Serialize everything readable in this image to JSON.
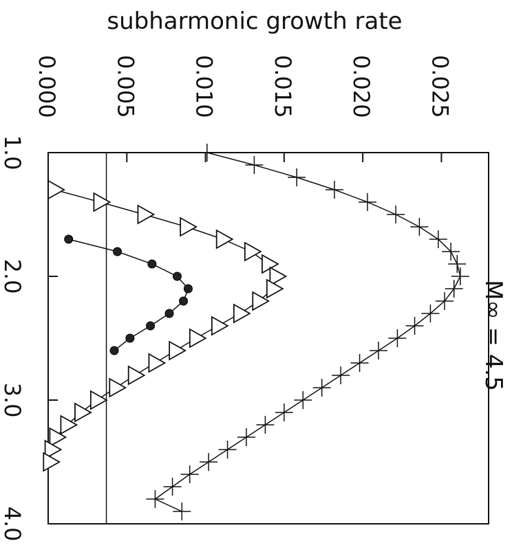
{
  "chart_data": {
    "type": "line",
    "orientation": "rotated-90-clockwise",
    "title": "M∞ = 4.5",
    "xlabel": "",
    "ylabel": "subharmonic growth rate",
    "xlim": [
      1.0,
      4.0
    ],
    "ylim": [
      0.0,
      0.028
    ],
    "x_ticks": [
      "1.0",
      "2.0",
      "3.0",
      "4.0"
    ],
    "y_ticks": [
      "0.000",
      "0.005",
      "0.010",
      "0.015",
      "0.020",
      "0.025"
    ],
    "reference_line_y": 0.0037,
    "series": [
      {
        "marker": "plus",
        "x": [
          1.0,
          1.1,
          1.2,
          1.3,
          1.4,
          1.5,
          1.6,
          1.7,
          1.8,
          1.9,
          2.0,
          2.1,
          2.2,
          2.3,
          2.4,
          2.5,
          2.6,
          2.7,
          2.8,
          2.9,
          3.0,
          3.1,
          3.2,
          3.3,
          3.4,
          3.5,
          3.6,
          3.7,
          3.8,
          3.9
        ],
        "y": [
          0.0101,
          0.0131,
          0.0158,
          0.0182,
          0.0203,
          0.0221,
          0.0236,
          0.0248,
          0.0256,
          0.026,
          0.0262,
          0.0258,
          0.0252,
          0.0243,
          0.0233,
          0.0222,
          0.021,
          0.0198,
          0.0186,
          0.0174,
          0.0162,
          0.015,
          0.0138,
          0.0126,
          0.0114,
          0.0102,
          0.009,
          0.0079,
          0.0068,
          0.0085
        ]
      },
      {
        "marker": "triangle",
        "x": [
          1.3,
          1.4,
          1.5,
          1.6,
          1.7,
          1.8,
          1.9,
          2.0,
          2.1,
          2.2,
          2.3,
          2.4,
          2.5,
          2.6,
          2.7,
          2.8,
          2.9,
          3.0,
          3.1,
          3.2,
          3.3,
          3.4,
          3.5
        ],
        "y": [
          0.0004,
          0.0033,
          0.0061,
          0.0088,
          0.0111,
          0.0129,
          0.014,
          0.0145,
          0.0143,
          0.0134,
          0.0122,
          0.0108,
          0.0094,
          0.0081,
          0.0068,
          0.0055,
          0.0043,
          0.0031,
          0.0021,
          0.0012,
          0.0005,
          0.0002,
          0.0001
        ]
      },
      {
        "marker": "filled-circle",
        "x": [
          1.7,
          1.8,
          1.9,
          2.0,
          2.1,
          2.2,
          2.3,
          2.4,
          2.5,
          2.6
        ],
        "y": [
          0.0013,
          0.0044,
          0.0066,
          0.0082,
          0.0089,
          0.0086,
          0.0077,
          0.0065,
          0.0052,
          0.0042
        ]
      }
    ]
  }
}
